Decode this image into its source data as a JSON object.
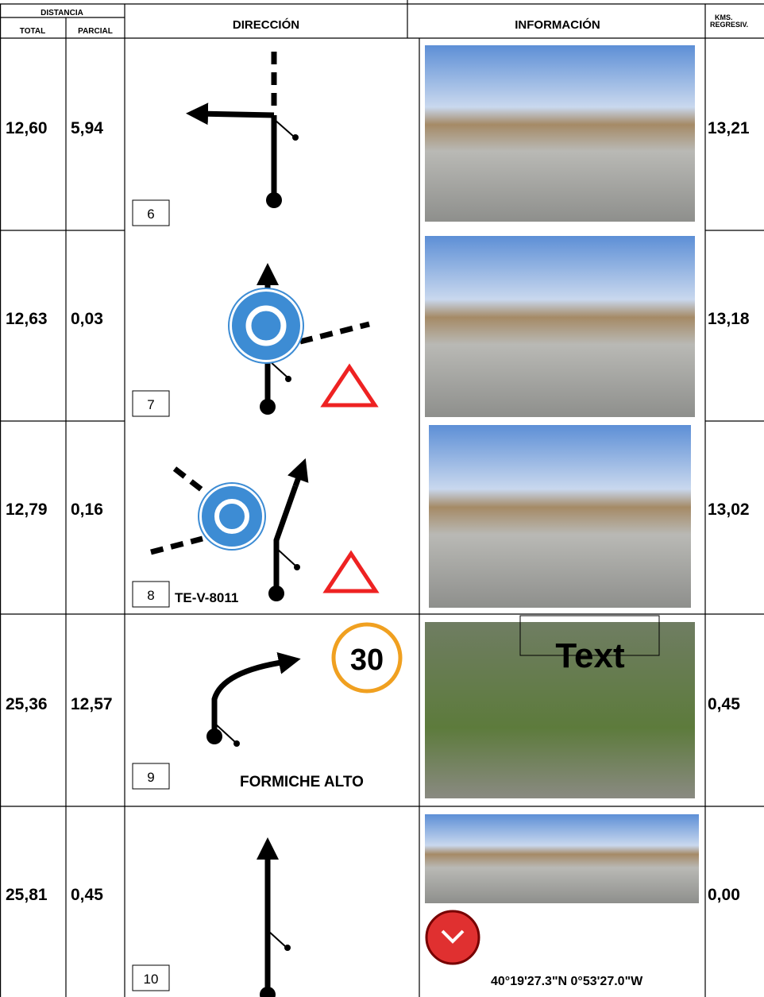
{
  "header": {
    "distancia": "DISTANCIA",
    "total": "TOTAL",
    "parcial": "PARCIAL",
    "direccion": "DIRECCIÓN",
    "informacion": "INFORMACIÓN",
    "kms": [
      "KMS.",
      "REGRESIV."
    ]
  },
  "rows": [
    {
      "total": "12,60",
      "partial": "5,94",
      "number": "6",
      "kms": "13,21"
    },
    {
      "total": "12,63",
      "partial": "0,03",
      "number": "7",
      "kms": "13,18"
    },
    {
      "total": "12,79",
      "partial": "0,16",
      "number": "8",
      "kms": "13,02",
      "road": "TE-V-8011"
    },
    {
      "total": "25,36",
      "partial": "12,57",
      "number": "9",
      "kms": "0,45",
      "place": "FORMICHE ALTO",
      "speed": "30",
      "photo_text": "Text"
    },
    {
      "total": "25,81",
      "partial": "0,45",
      "number": "10",
      "kms": "0,00",
      "coordinates": "40°19'27.3\"N 0°53'27.0\"W"
    }
  ]
}
